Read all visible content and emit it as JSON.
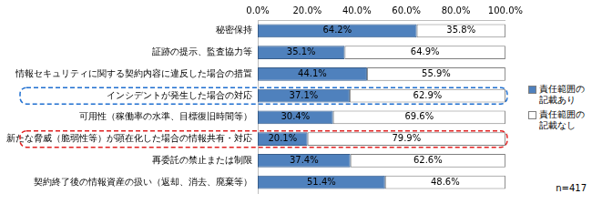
{
  "chart_data": {
    "type": "bar",
    "orientation": "horizontal",
    "stacked": true,
    "grid": false,
    "legend": "right",
    "data_labels": true,
    "categories": [
      "秘密保持",
      "証跡の提示、監査協力等",
      "情報セキュリティに関する契約内容に違反した場合の措置",
      "インシデントが発生した場合の対応",
      "可用性（稼働率の水準、目標復旧時間等）",
      "新たな脅威（脆弱性等）が顕在化した場合の情報共有・対応",
      "再委託の禁止または制限",
      "契約終了後の情報資産の扱い（返却、消去、廃棄等）"
    ],
    "series": [
      {
        "name": "責任範囲の記載あり",
        "color": "#4f81bd",
        "values": [
          64.2,
          35.1,
          44.1,
          37.1,
          30.4,
          20.1,
          37.4,
          51.4
        ],
        "value_labels": [
          "64.2%",
          "35.1%",
          "44.1%",
          "37.1%",
          "30.4%",
          "20.1%",
          "37.4%",
          "51.4%"
        ]
      },
      {
        "name": "責任範囲の記載なし",
        "color": "#ffffff",
        "values": [
          35.8,
          64.9,
          55.9,
          62.9,
          69.6,
          79.9,
          62.6,
          48.6
        ],
        "value_labels": [
          "35.8%",
          "64.9%",
          "55.9%",
          "62.9%",
          "69.6%",
          "79.9%",
          "62.6%",
          "48.6%"
        ]
      }
    ],
    "xlim": [
      0,
      100
    ],
    "xticks": [
      {
        "value": 0,
        "label": "0.0%"
      },
      {
        "value": 20,
        "label": "20.0%"
      },
      {
        "value": 40,
        "label": "40.0%"
      },
      {
        "value": 60,
        "label": "60.0%"
      },
      {
        "value": 80,
        "label": "80.0%"
      },
      {
        "value": 100,
        "label": "100.0%"
      }
    ],
    "annotations": [
      "n=417"
    ]
  }
}
